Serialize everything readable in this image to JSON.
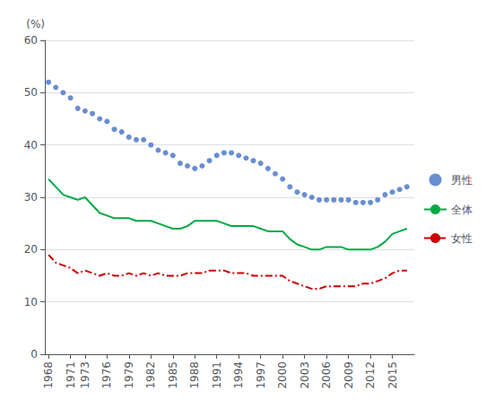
{
  "chart_data": {
    "type": "line",
    "ylabel": "(%)",
    "x": [
      1968,
      1969,
      1970,
      1971,
      1972,
      1973,
      1974,
      1975,
      1976,
      1977,
      1978,
      1979,
      1980,
      1981,
      1982,
      1983,
      1984,
      1985,
      1986,
      1987,
      1988,
      1989,
      1990,
      1991,
      1992,
      1993,
      1994,
      1995,
      1996,
      1997,
      1998,
      1999,
      2000,
      2001,
      2002,
      2003,
      2004,
      2005,
      2006,
      2007,
      2008,
      2009,
      2010,
      2011,
      2012,
      2013,
      2014,
      2015,
      2016,
      2017
    ],
    "series": [
      {
        "name": "男性",
        "type": "scatter",
        "marker": "circle",
        "line_style": "none",
        "color": "#4472C4",
        "values": [
          52.0,
          51.0,
          50.0,
          49.0,
          47.0,
          46.5,
          46.0,
          45.0,
          44.5,
          43.0,
          42.5,
          41.5,
          41.0,
          41.0,
          40.0,
          39.0,
          38.5,
          38.0,
          36.5,
          36.0,
          35.5,
          36.0,
          37.0,
          38.0,
          38.5,
          38.5,
          38.0,
          37.5,
          37.0,
          36.5,
          35.5,
          34.5,
          33.5,
          32.0,
          31.0,
          30.5,
          30.0,
          29.5,
          29.5,
          29.5,
          29.5,
          29.5,
          29.0,
          29.0,
          29.0,
          29.5,
          30.5,
          31.0,
          31.5,
          32.0
        ]
      },
      {
        "name": "全体",
        "type": "line",
        "line_style": "solid",
        "color": "#00AA44",
        "values": [
          33.5,
          32.0,
          30.5,
          30.0,
          29.5,
          30.0,
          28.5,
          27.0,
          26.5,
          26.0,
          26.0,
          26.0,
          25.5,
          25.5,
          25.5,
          25.0,
          24.5,
          24.0,
          24.0,
          24.5,
          25.5,
          25.5,
          25.5,
          25.5,
          25.0,
          24.5,
          24.5,
          24.5,
          24.5,
          24.0,
          23.5,
          23.5,
          23.5,
          22.0,
          21.0,
          20.5,
          20.0,
          20.0,
          20.5,
          20.5,
          20.5,
          20.0,
          20.0,
          20.0,
          20.0,
          20.5,
          21.5,
          23.0,
          23.5,
          24.0
        ]
      },
      {
        "name": "女性",
        "type": "line",
        "line_style": "dashdot",
        "color": "#CC0000",
        "values": [
          19.0,
          17.5,
          17.0,
          16.5,
          15.5,
          16.0,
          15.5,
          15.0,
          15.5,
          15.0,
          15.0,
          15.5,
          15.0,
          15.5,
          15.0,
          15.5,
          15.0,
          15.0,
          15.0,
          15.5,
          15.5,
          15.5,
          16.0,
          16.0,
          16.0,
          15.5,
          15.5,
          15.5,
          15.0,
          15.0,
          15.0,
          15.0,
          15.0,
          14.0,
          13.5,
          13.0,
          12.5,
          12.5,
          13.0,
          13.0,
          13.0,
          13.0,
          13.0,
          13.5,
          13.5,
          14.0,
          14.5,
          15.5,
          16.0,
          16.0
        ]
      }
    ],
    "xlim": [
      1967.5,
      2018
    ],
    "xticks": [
      1968,
      1971,
      1973,
      1976,
      1979,
      1982,
      1985,
      1988,
      1991,
      1994,
      1997,
      2000,
      2003,
      2006,
      2009,
      2012,
      2015
    ],
    "ylim": [
      0,
      60
    ],
    "yticks": [
      0,
      10,
      20,
      30,
      40,
      50,
      60
    ],
    "grid": true,
    "legend": "right"
  }
}
